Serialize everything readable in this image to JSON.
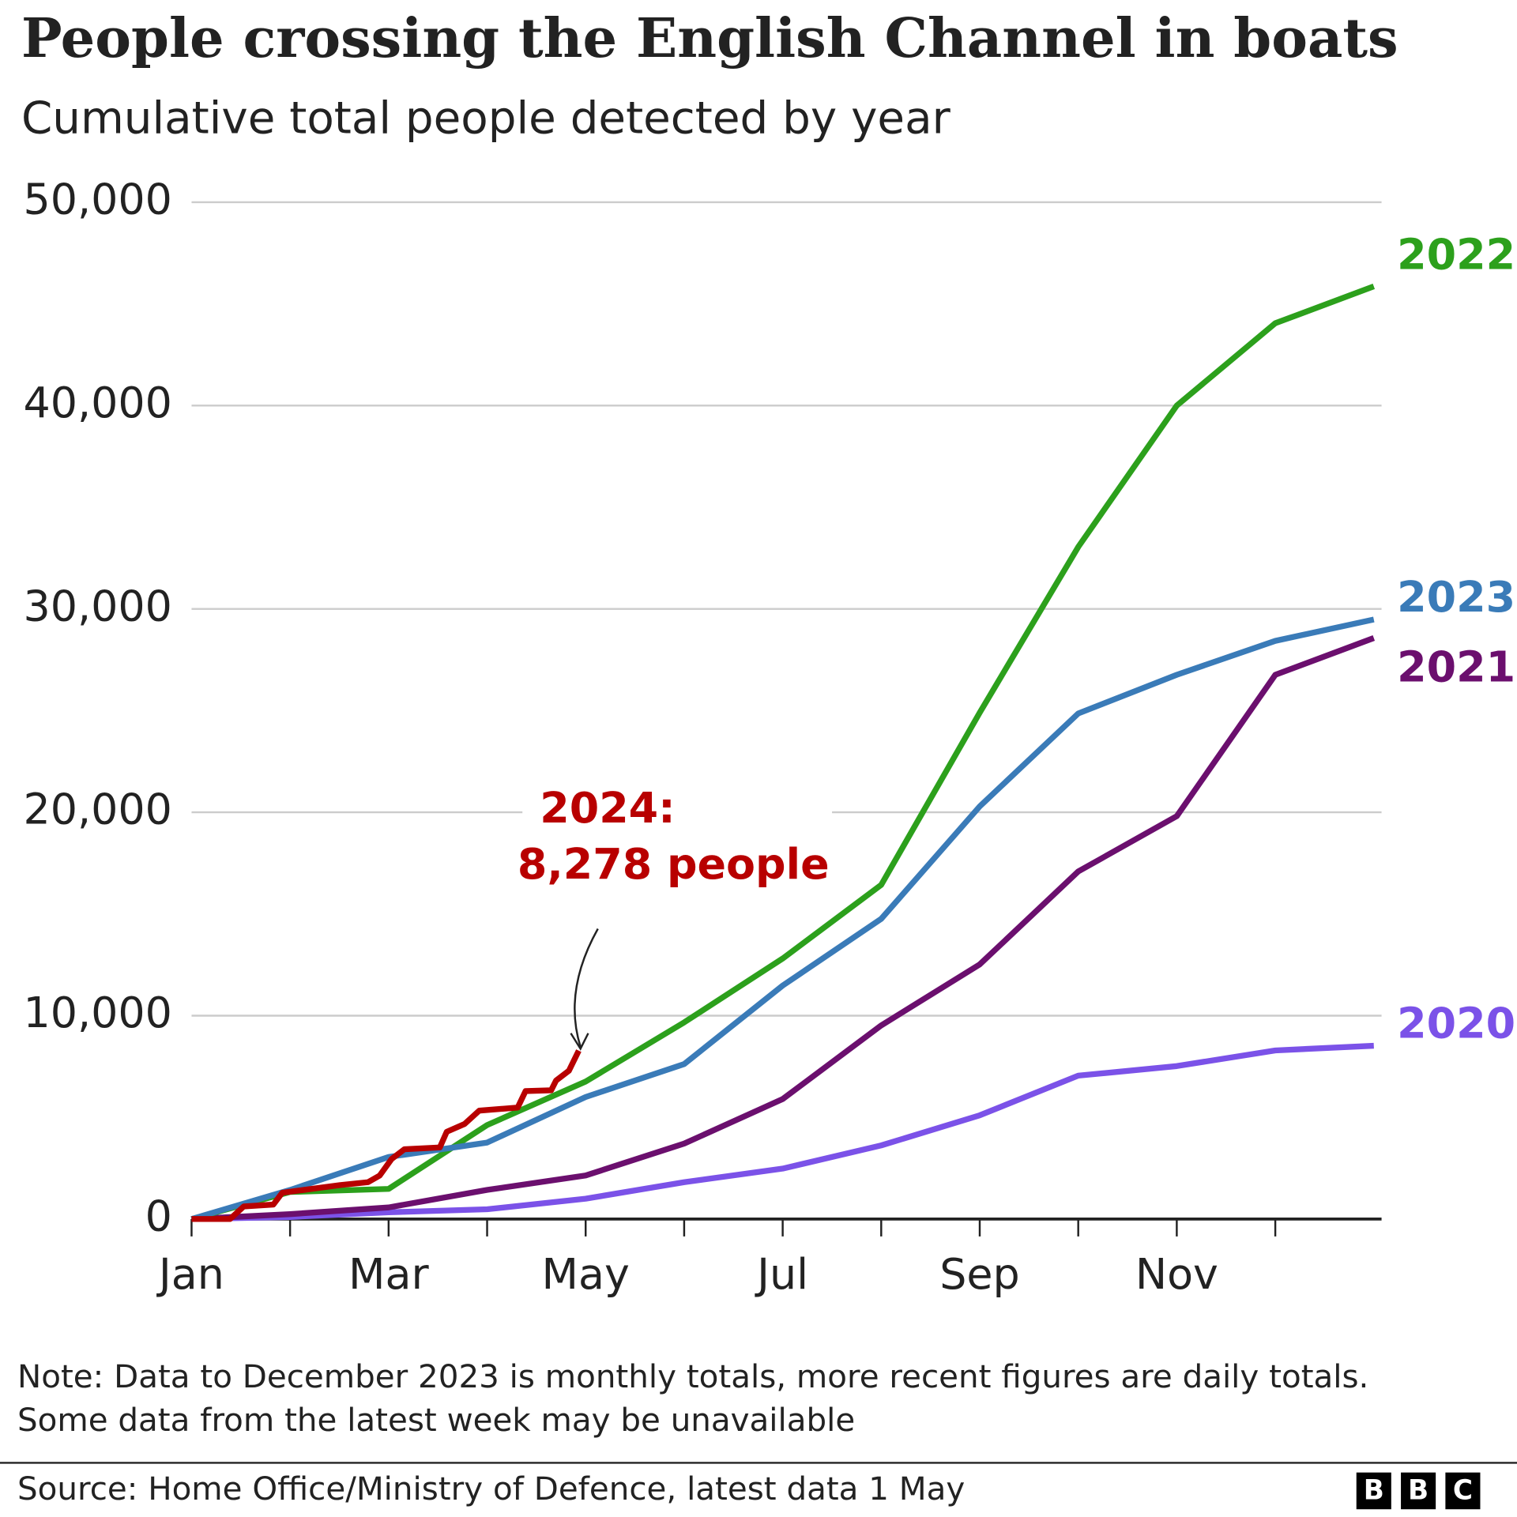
{
  "chart_data": {
    "type": "line",
    "title": "People crossing the English Channel in boats",
    "subtitle": "Cumulative total people detected by year",
    "categories": [
      "Jan",
      null,
      "Mar",
      null,
      "May",
      null,
      "Jul",
      null,
      "Sep",
      null,
      "Nov",
      null,
      null
    ],
    "ylim": [
      0,
      50000
    ],
    "yticks": [
      0,
      {
        "value": 10000,
        "label": "10,000"
      },
      {
        "value": 20000,
        "label": "20,000"
      },
      {
        "value": 30000,
        "label": "30,000"
      },
      {
        "value": 40000,
        "label": "40,000"
      },
      {
        "value": 50000,
        "label": "50,000"
      }
    ],
    "grid": true,
    "series": [
      {
        "name": "2020",
        "color": "#7b52e8",
        "values": [
          0,
          100,
          330,
          480,
          1000,
          1810,
          2480,
          3620,
          5100,
          7050,
          7520,
          8290,
          8520
        ]
      },
      {
        "name": "2021",
        "color": "#6b0f6e",
        "values": [
          0,
          240,
          570,
          1430,
          2140,
          3710,
          5900,
          9520,
          12520,
          17090,
          19810,
          26760,
          28570
        ]
      },
      {
        "name": "2022",
        "color": "#2ca01c",
        "values": [
          0,
          1330,
          1480,
          4620,
          6760,
          9670,
          12810,
          16430,
          24900,
          33050,
          40000,
          44050,
          45860
        ]
      },
      {
        "name": "2023",
        "color": "#3a7bb8",
        "values": [
          0,
          1430,
          3050,
          3760,
          6000,
          7620,
          11480,
          14760,
          20290,
          24860,
          26760,
          28430,
          29480
        ]
      }
    ],
    "series_2024": {
      "color": "#b80000",
      "x": [
        0,
        0.39,
        0.53,
        0.83,
        0.92,
        1.51,
        1.79,
        1.91,
        2.03,
        2.16,
        2.52,
        2.59,
        2.77,
        2.92,
        3.31,
        3.39,
        3.65,
        3.7,
        3.83,
        3.93
      ],
      "values": [
        0,
        0,
        620,
        710,
        1290,
        1670,
        1810,
        2140,
        2950,
        3430,
        3520,
        4290,
        4670,
        5330,
        5480,
        6290,
        6330,
        6810,
        7290,
        8278
      ]
    },
    "annotation": [
      "2024:",
      "8,278 people"
    ],
    "note": [
      "Note: Data to December 2023 is monthly totals, more recent figures are daily totals.",
      "Some data from the latest week may be unavailable"
    ],
    "source": "Source: Home Office/Ministry of Defence, latest data 1 May",
    "logo": [
      "B",
      "B",
      "C"
    ]
  }
}
